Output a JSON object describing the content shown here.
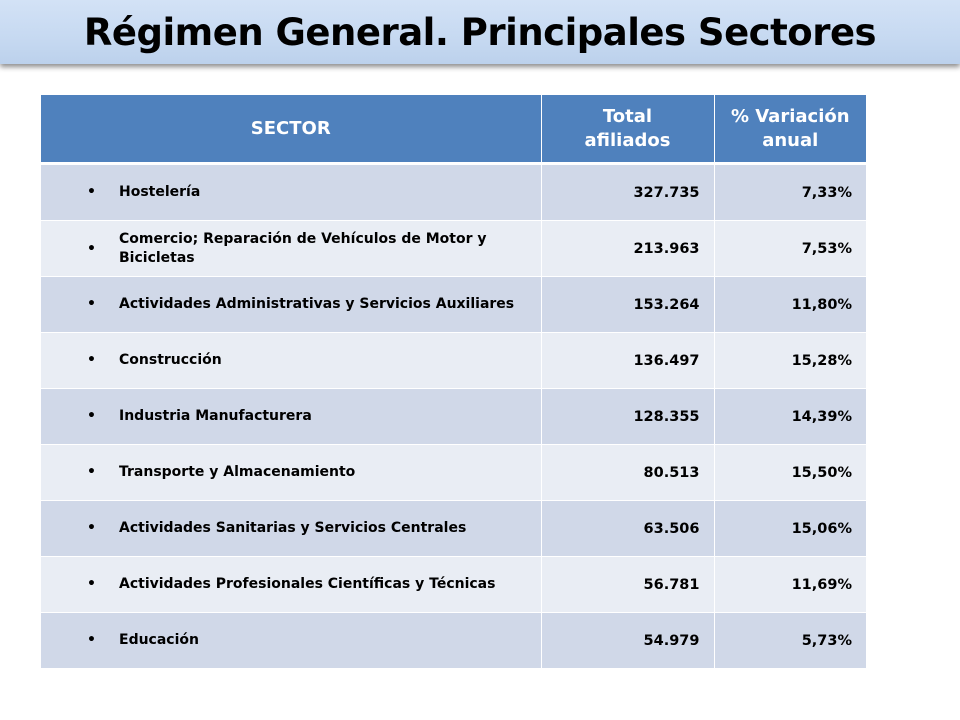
{
  "title": "Régimen General. Principales Sectores",
  "table": {
    "headers": {
      "sector": "SECTOR",
      "total_line1": "Total",
      "total_line2": "afiliados",
      "variation_line1": "% Variación",
      "variation_line2": "anual"
    },
    "bullet": "•",
    "rows": [
      {
        "sector": "Hostelería",
        "total": "327.735",
        "variation": "7,33%"
      },
      {
        "sector": "Comercio; Reparación de Vehículos de Motor y Bicicletas",
        "total": "213.963",
        "variation": "7,53%"
      },
      {
        "sector": "Actividades Administrativas y Servicios Auxiliares",
        "total": "153.264",
        "variation": "11,80%"
      },
      {
        "sector": "Construcción",
        "total": "136.497",
        "variation": "15,28%"
      },
      {
        "sector": "Industria Manufacturera",
        "total": "128.355",
        "variation": "14,39%"
      },
      {
        "sector": "Transporte y Almacenamiento",
        "total": "80.513",
        "variation": "15,50%"
      },
      {
        "sector": "Actividades Sanitarias y Servicios Centrales",
        "total": "63.506",
        "variation": "15,06%"
      },
      {
        "sector": "Actividades Profesionales Científicas y Técnicas",
        "total": "56.781",
        "variation": "11,69%"
      },
      {
        "sector": "Educación",
        "total": "54.979",
        "variation": "5,73%"
      }
    ]
  },
  "colors": {
    "title_bar": "#c6d9f1",
    "header_bg": "#4f81bd",
    "row_odd": "#d0d8e8",
    "row_even": "#e9edf4"
  }
}
